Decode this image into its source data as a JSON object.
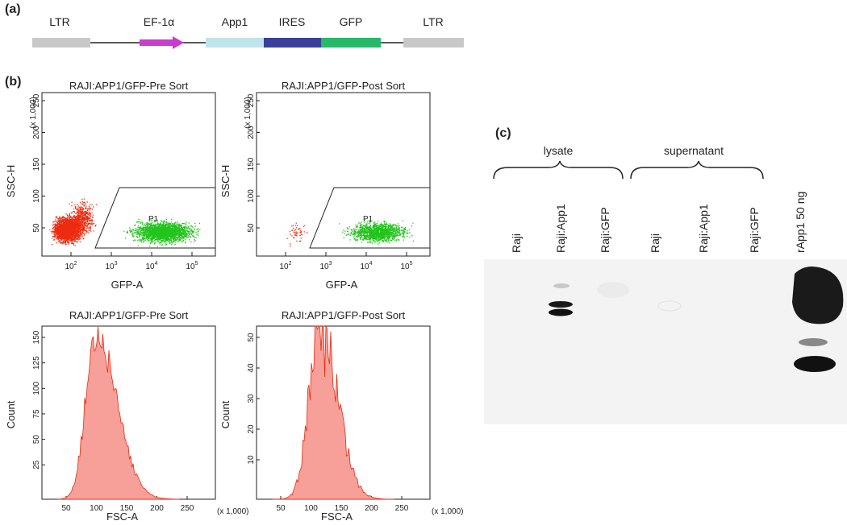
{
  "panel_a": {
    "label": "(a)",
    "elements": [
      "LTR",
      "EF-1α",
      "App1",
      "IRES",
      "GFP",
      "LTR"
    ]
  },
  "panel_b": {
    "label": "(b)",
    "scatter_plots": [
      {
        "title": "RAJI:APP1/GFP-Pre Sort",
        "gate": "P1"
      },
      {
        "title": "RAJI:APP1/GFP-Post Sort",
        "gate": "P1"
      }
    ],
    "scatter_y_axis": {
      "label": "SSC-H",
      "multiplier": "(x 1,000)",
      "ticks": [
        "250",
        "200",
        "150",
        "100",
        "50"
      ]
    },
    "scatter_x_axis": {
      "label": "GFP-A",
      "ticks": [
        {
          "base": "10",
          "exp": "2"
        },
        {
          "base": "10",
          "exp": "3"
        },
        {
          "base": "10",
          "exp": "4"
        },
        {
          "base": "10",
          "exp": "5"
        }
      ]
    },
    "histograms": [
      {
        "title": "RAJI:APP1/GFP-Pre Sort",
        "yticks": [
          "150",
          "125",
          "100",
          "75",
          "50",
          "25"
        ]
      },
      {
        "title": "RAJI:APP1/GFP-Post Sort",
        "yticks": [
          "50",
          "40",
          "30",
          "20",
          "10"
        ]
      }
    ],
    "histogram_y_label": "Count",
    "histogram_x_axis": {
      "label": "FSC-A",
      "multiplier": "(x 1,000)",
      "ticks": [
        "50",
        "100",
        "150",
        "200",
        "250"
      ]
    }
  },
  "panel_c": {
    "label": "(c)",
    "groups": [
      "lysate",
      "supernatant"
    ],
    "lanes": [
      "Raji",
      "Raji:App1",
      "Raji:GFP",
      "Raji",
      "Raji:App1",
      "Raji:GFP",
      "rApp1 50 ng"
    ]
  }
}
